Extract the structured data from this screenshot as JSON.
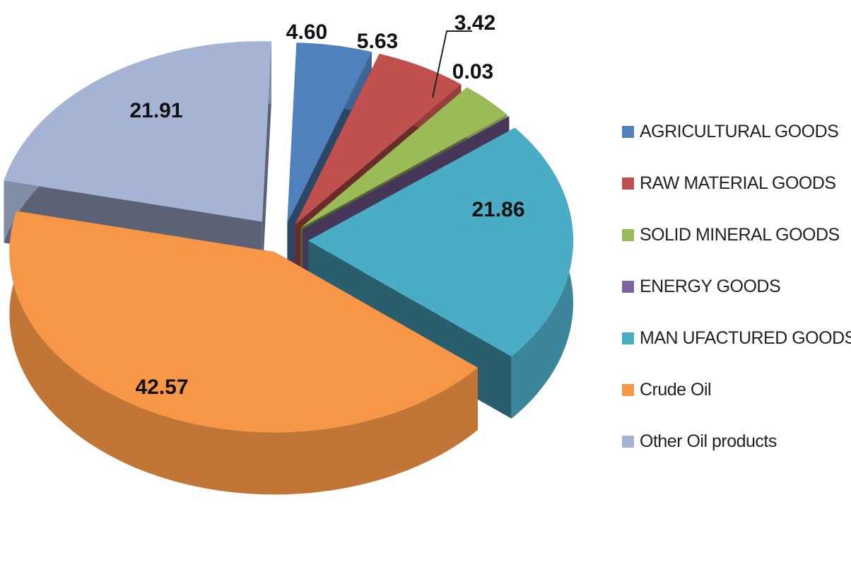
{
  "chart_data": {
    "type": "pie",
    "categories": [
      "AGRICULTURAL GOODS",
      "RAW MATERIAL GOODS",
      "SOLID MINERAL GOODS",
      "ENERGY GOODS",
      "MAN UFACTURED GOODS",
      "Crude Oil",
      "Other Oil products"
    ],
    "values": [
      4.6,
      5.63,
      3.42,
      0.03,
      21.86,
      42.57,
      21.91
    ],
    "value_labels": [
      "4.60",
      "5.63",
      "3.42",
      "0.03",
      "21.86",
      "42.57",
      "21.91"
    ],
    "colors": [
      "#4F81BD",
      "#C0504D",
      "#9BBB59",
      "#8064A2",
      "#4BACC6",
      "#F79646",
      "#A5B3D4"
    ],
    "legend_position": "right",
    "exploded": true,
    "three_d": true
  }
}
